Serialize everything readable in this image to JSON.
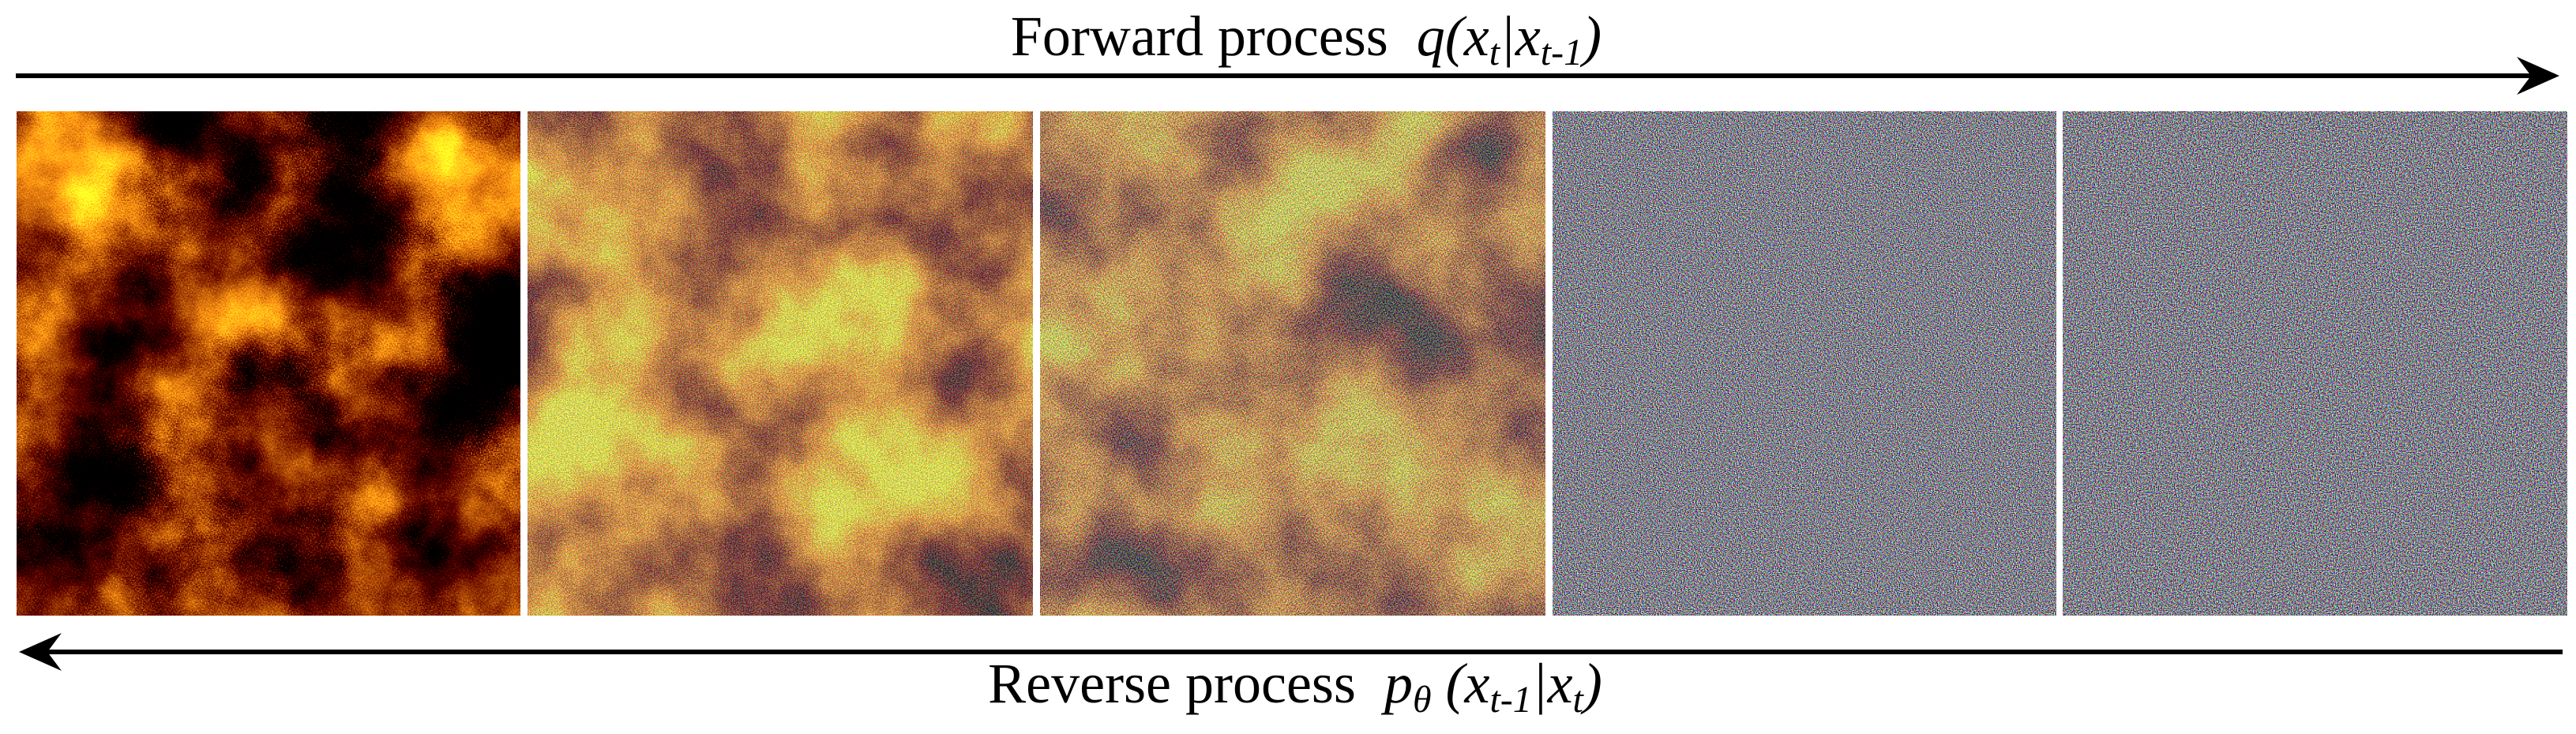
{
  "forward": {
    "label": "Forward process",
    "formula": [
      "q(x",
      "t",
      "|x",
      "t-1",
      ")"
    ]
  },
  "reverse": {
    "label": "Reverse process",
    "formula": [
      "p",
      "θ",
      " (x",
      "t-1",
      "|x",
      "t",
      ")"
    ]
  }
}
